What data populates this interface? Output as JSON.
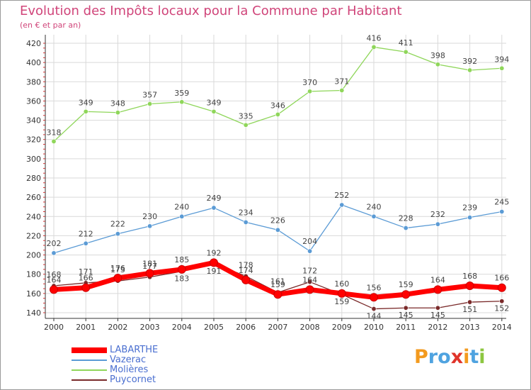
{
  "header": {
    "title": "Evolution des Impôts locaux pour la Commune par Habitant",
    "subtitle": "(en € et par an)"
  },
  "colors": {
    "title": "#d0457a",
    "grid": "#d9d9d9",
    "axis": "#333333",
    "legend_text": "#4a6fd0"
  },
  "chart_data": {
    "type": "line",
    "title": "Evolution des Impôts locaux pour la Commune par Habitant",
    "subtitle": "(en € et par an)",
    "xlabel": "",
    "ylabel": "",
    "x": [
      "2000",
      "2001",
      "2002",
      "2003",
      "2004",
      "2005",
      "2006",
      "2007",
      "2008",
      "2009",
      "2010",
      "2011",
      "2012",
      "2013",
      "2014"
    ],
    "ylim": [
      140,
      420
    ],
    "yticks": [
      140,
      160,
      180,
      200,
      220,
      240,
      260,
      280,
      300,
      320,
      340,
      360,
      380,
      400,
      420
    ],
    "grid": true,
    "legend_position": "bottom-left",
    "series": [
      {
        "name": "LABARTHE",
        "color": "#ff0000",
        "values": [
          164,
          166,
          176,
          181,
          185,
          192,
          174,
          159,
          164,
          160,
          156,
          159,
          164,
          168,
          166
        ]
      },
      {
        "name": "Vazerac",
        "color": "#5b9bd5",
        "values": [
          202,
          212,
          222,
          230,
          240,
          249,
          234,
          226,
          204,
          252,
          240,
          228,
          232,
          239,
          245
        ]
      },
      {
        "name": "Molières",
        "color": "#8fd65a",
        "values": [
          318,
          349,
          348,
          357,
          359,
          349,
          335,
          346,
          370,
          371,
          416,
          411,
          398,
          392,
          394
        ]
      },
      {
        "name": "Puycornet",
        "color": "#7a2a2a",
        "values": [
          168,
          171,
          173,
          177,
          183,
          191,
          178,
          161,
          172,
          159,
          144,
          145,
          145,
          151,
          152
        ]
      }
    ]
  },
  "watermark": {
    "letters": [
      "P",
      "r",
      "o",
      "x",
      "i",
      "t",
      "i"
    ],
    "colors": [
      "#f39a1e",
      "#4fa3e0",
      "#4fa3e0",
      "#e0342a",
      "#f39a1e",
      "#4fa3e0",
      "#8cc63f"
    ]
  }
}
